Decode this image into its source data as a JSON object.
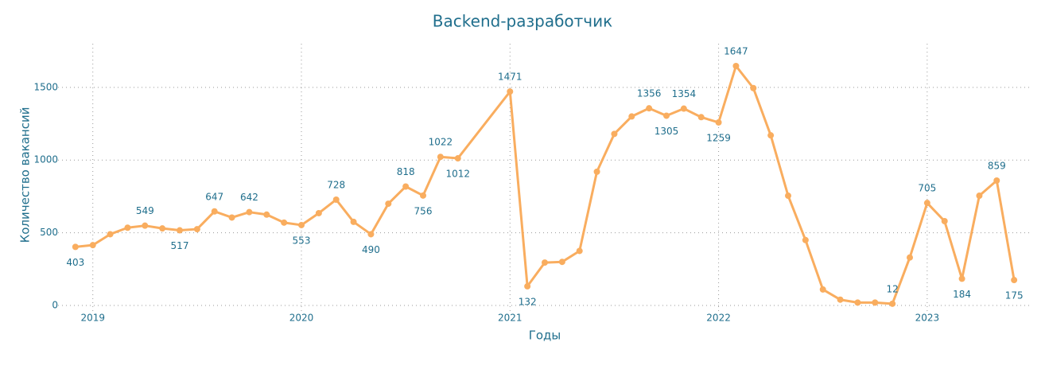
{
  "chart_data": {
    "type": "line",
    "title": "Backend-разработчик",
    "x_label": "Годы",
    "y_label": "Количество вакансий",
    "x": [
      "2018-12",
      "2019-01",
      "2019-02",
      "2019-03",
      "2019-04",
      "2019-05",
      "2019-06",
      "2019-07",
      "2019-08",
      "2019-09",
      "2019-10",
      "2019-11",
      "2019-12",
      "2020-01",
      "2020-02",
      "2020-03",
      "2020-04",
      "2020-05",
      "2020-06",
      "2020-07",
      "2020-08",
      "2020-09",
      "2020-10",
      "2021-01",
      "2021-02",
      "2021-03",
      "2021-04",
      "2021-05",
      "2021-06",
      "2021-07",
      "2021-08",
      "2021-09",
      "2021-10",
      "2021-11",
      "2021-12",
      "2022-01",
      "2022-02",
      "2022-03",
      "2022-04",
      "2022-05",
      "2022-06",
      "2022-07",
      "2022-08",
      "2022-09",
      "2022-10",
      "2022-11",
      "2022-12",
      "2023-01",
      "2023-02",
      "2023-03",
      "2023-04",
      "2023-05",
      "2023-06"
    ],
    "series": [
      {
        "name": "Backend-разработчик",
        "color": "#f9ad5f",
        "values": [
          403,
          415,
          490,
          535,
          549,
          530,
          517,
          525,
          647,
          605,
          642,
          625,
          570,
          553,
          635,
          728,
          575,
          490,
          700,
          818,
          756,
          1022,
          1012,
          1471,
          132,
          295,
          300,
          375,
          920,
          1180,
          1300,
          1356,
          1305,
          1354,
          1295,
          1259,
          1647,
          1495,
          1170,
          755,
          450,
          110,
          40,
          20,
          20,
          12,
          330,
          705,
          580,
          184,
          755,
          859,
          175
        ],
        "value_labels": [
          "403",
          null,
          null,
          null,
          "549",
          null,
          "517",
          null,
          "647",
          null,
          "642",
          null,
          null,
          "553",
          null,
          "728",
          null,
          "490",
          null,
          "818",
          "756",
          "1022",
          "1012",
          "1471",
          "132",
          null,
          null,
          null,
          null,
          null,
          null,
          "1356",
          "1305",
          "1354",
          null,
          "1259",
          "1647",
          null,
          null,
          null,
          null,
          null,
          null,
          null,
          null,
          "12",
          null,
          "705",
          null,
          "184",
          null,
          "859",
          "175"
        ]
      }
    ],
    "xlim": [
      "2018-11",
      "2023-07"
    ],
    "xticks": [
      {
        "value": "2019-01",
        "label": "2019"
      },
      {
        "value": "2020-01",
        "label": "2020"
      },
      {
        "value": "2021-01",
        "label": "2021"
      },
      {
        "value": "2022-01",
        "label": "2022"
      },
      {
        "value": "2023-01",
        "label": "2023"
      }
    ],
    "ylim": [
      -60,
      1800
    ],
    "yticks": [
      0,
      500,
      1000,
      1500
    ],
    "grid": true
  }
}
